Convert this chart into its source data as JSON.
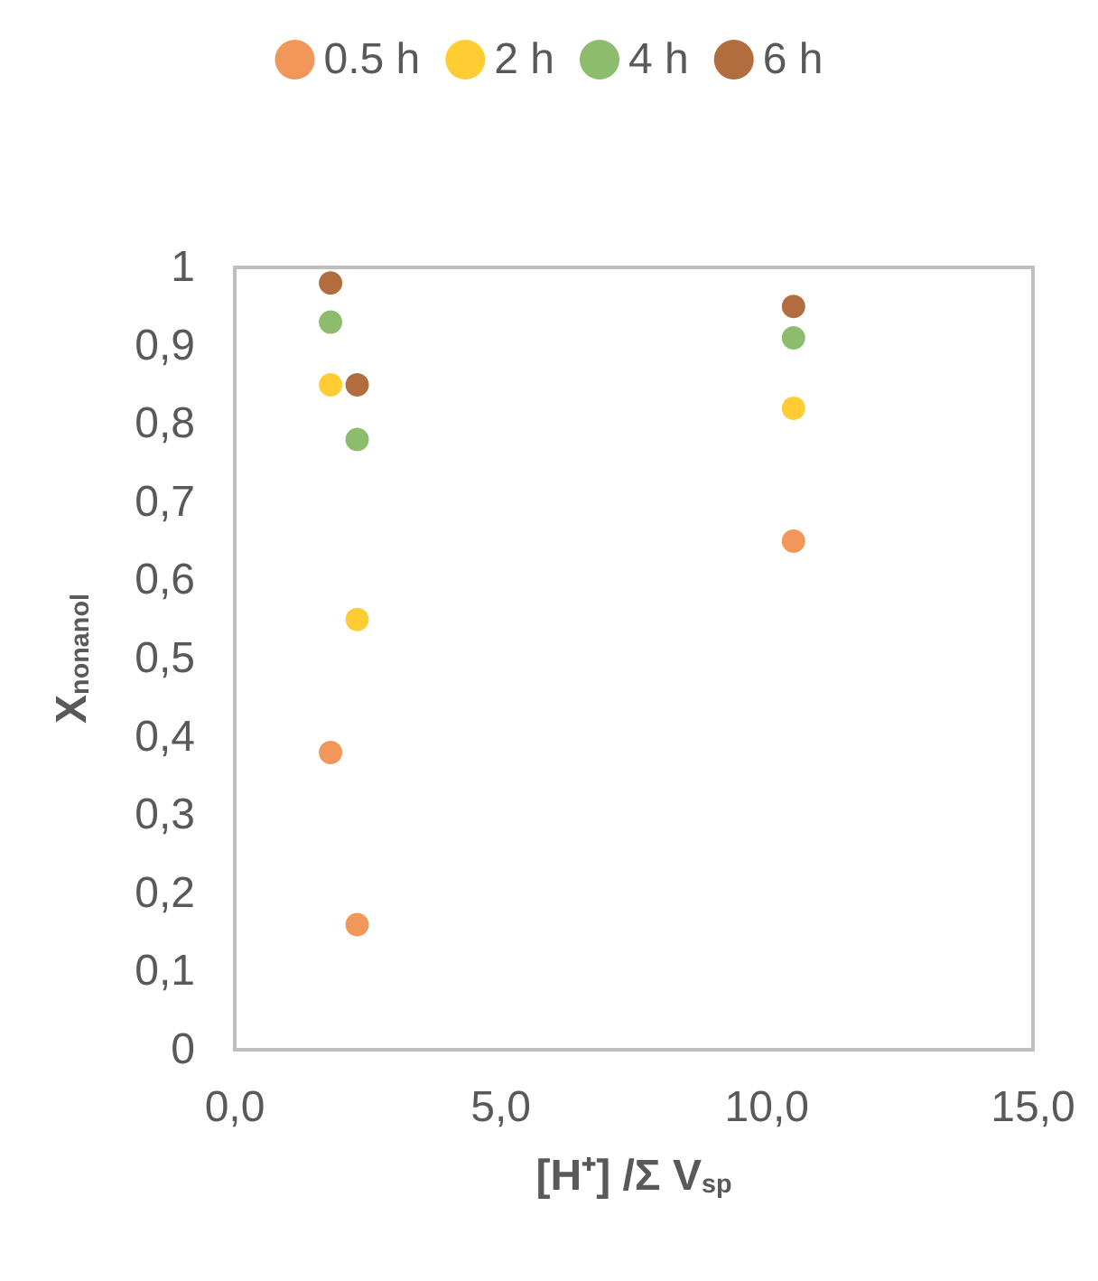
{
  "chart_data": {
    "type": "scatter",
    "xlabel": "[H⁺] /Σ V$_{sp}$",
    "ylabel": "X$_{nonanol}$",
    "xlim": [
      0,
      15
    ],
    "xticks": [
      {
        "value": 0,
        "label": "0,0"
      },
      {
        "value": 5,
        "label": "5,0"
      },
      {
        "value": 10,
        "label": "10,0"
      },
      {
        "value": 15,
        "label": "15,0"
      }
    ],
    "ylim": [
      0,
      1
    ],
    "yticks": [
      0,
      {
        "value": 0.1,
        "label": "0,1"
      },
      {
        "value": 0.2,
        "label": "0,2"
      },
      {
        "value": 0.3,
        "label": "0,3"
      },
      {
        "value": 0.4,
        "label": "0,4"
      },
      {
        "value": 0.5,
        "label": "0,5"
      },
      {
        "value": 0.6,
        "label": "0,6"
      },
      {
        "value": 0.7,
        "label": "0,7"
      },
      {
        "value": 0.8,
        "label": "0,8"
      },
      {
        "value": 0.9,
        "label": "0,9"
      },
      1
    ],
    "x": [
      1.8,
      2.3,
      10.5
    ],
    "series": [
      {
        "name": "0.5 h",
        "color": "#ed7d31",
        "values": [
          0.38,
          0.16,
          0.65
        ]
      },
      {
        "name": "2 h",
        "color": "#ffc000",
        "values": [
          0.85,
          0.55,
          0.82
        ]
      },
      {
        "name": "4 h",
        "color": "#70ad47",
        "values": [
          0.93,
          0.78,
          0.91
        ]
      },
      {
        "name": "6 h",
        "color": "#9e480e",
        "values": [
          0.98,
          0.85,
          0.95
        ]
      }
    ],
    "grid": false,
    "legend": "top",
    "marker": "circle"
  }
}
